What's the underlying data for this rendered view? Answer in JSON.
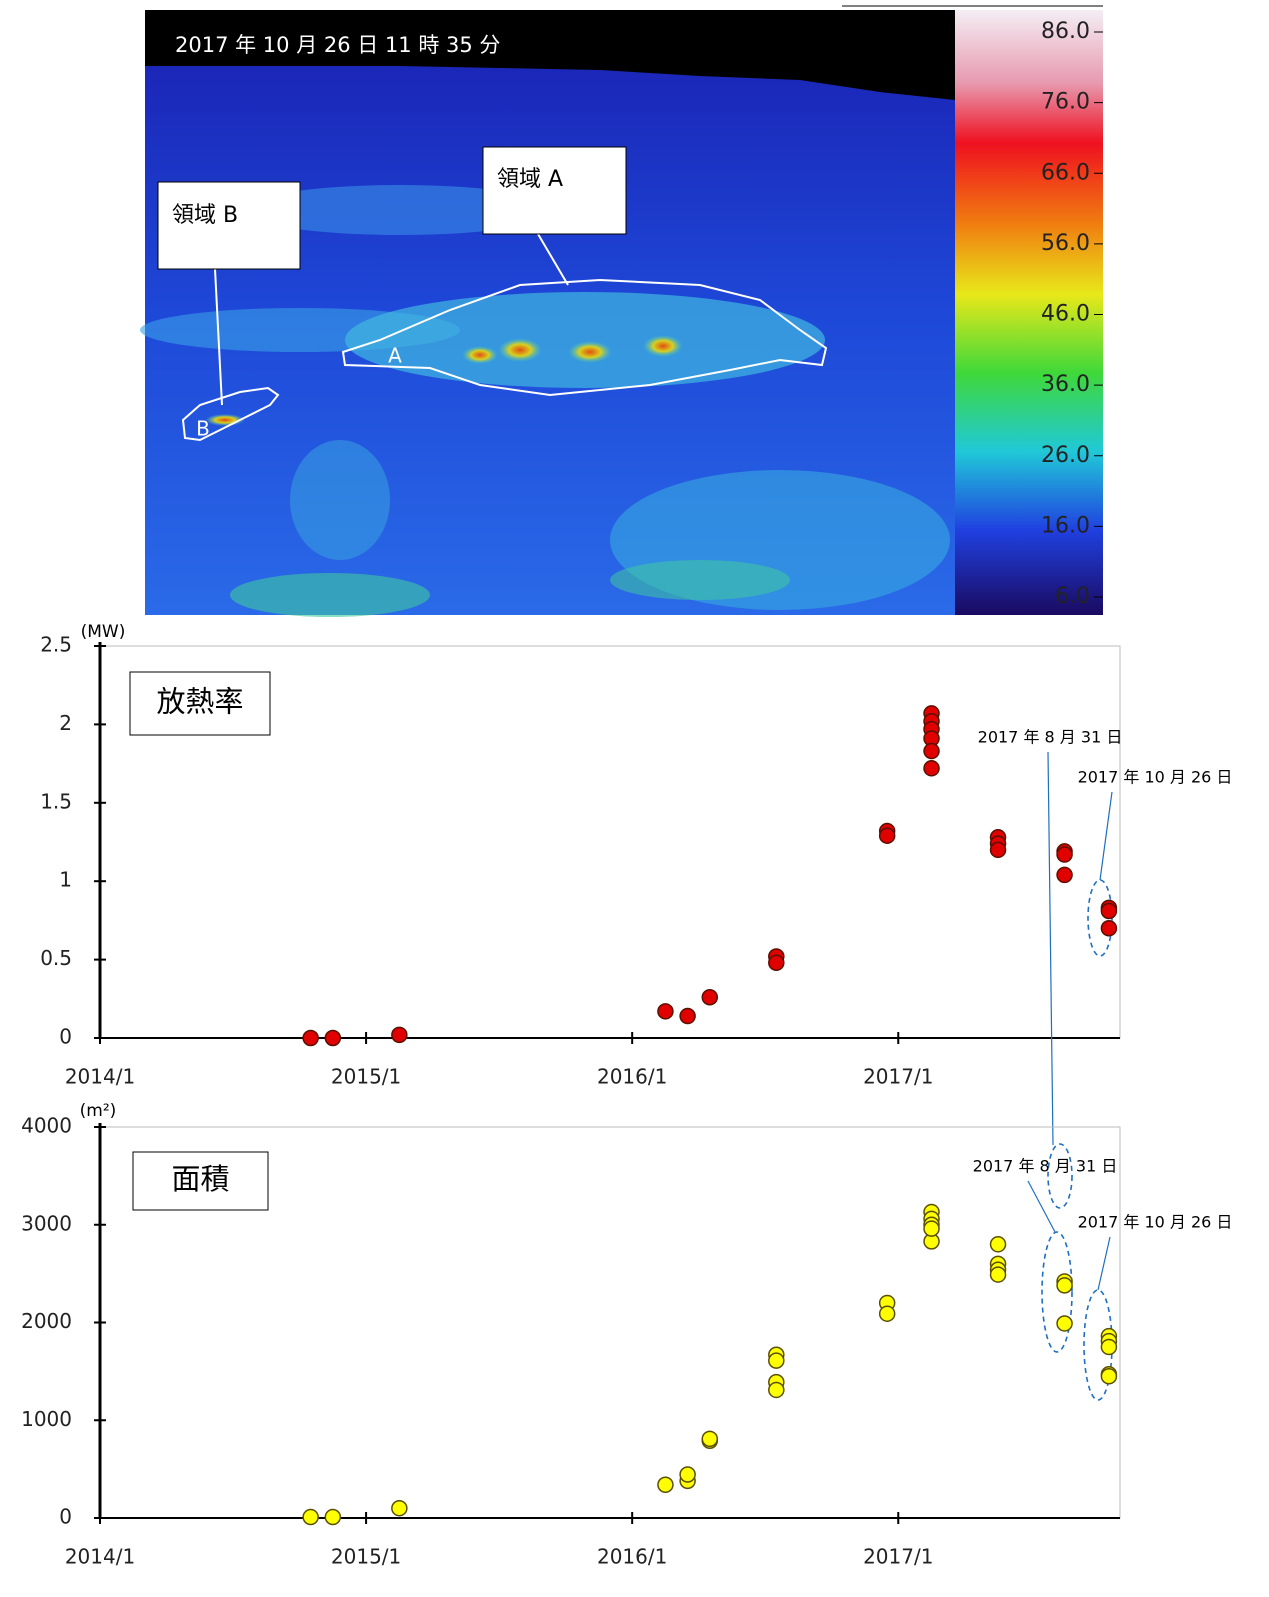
{
  "thermal_image": {
    "timestamp": "2017 年 10 月 26 日 11 時 35 分",
    "colorbar_ticks": [
      {
        "value": 86,
        "label": "86.0"
      },
      {
        "value": 76,
        "label": "76.0"
      },
      {
        "value": 66,
        "label": "66.0"
      },
      {
        "value": 56,
        "label": "56.0"
      },
      {
        "value": 46,
        "label": "46.0"
      },
      {
        "value": 36,
        "label": "36.0"
      },
      {
        "value": 26,
        "label": "26.0"
      },
      {
        "value": 16,
        "label": "16.0"
      },
      {
        "value": 6,
        "label": "6.0"
      }
    ],
    "colorbar_range": [
      6,
      86
    ],
    "regions": [
      {
        "callout": "領域 A",
        "label": "A"
      },
      {
        "callout": "領域 B",
        "label": "B"
      }
    ]
  },
  "chart_data": [
    {
      "type": "scatter",
      "title": "放熱率",
      "y_unit": "(MW)",
      "x": [
        "2014/10",
        "2014/11",
        "2015/2",
        "2016/2",
        "2016/3",
        "2016/4",
        "2016/7",
        "2016/7",
        "2016/12",
        "2016/12",
        "2017/2",
        "2017/2",
        "2017/2",
        "2017/2",
        "2017/2",
        "2017/2",
        "2017/5",
        "2017/5",
        "2017/5",
        "2017/8",
        "2017/8",
        "2017/8",
        "2017/10",
        "2017/10",
        "2017/10"
      ],
      "values": [
        0,
        0,
        0.02,
        0.17,
        0.14,
        0.26,
        0.52,
        0.48,
        1.32,
        1.29,
        2.07,
        2.02,
        1.97,
        1.91,
        1.83,
        1.72,
        1.28,
        1.24,
        1.2,
        1.19,
        1.17,
        1.04,
        0.83,
        0.81,
        0.7
      ],
      "color": "#e00000",
      "edge_color": "#5a1000",
      "xlim": [
        "2014/1",
        "2017/11"
      ],
      "xticks": [
        "2014/1",
        "2015/1",
        "2016/1",
        "2017/1"
      ],
      "ylim": [
        0,
        2.5
      ],
      "yticks": [
        0,
        0.5,
        1,
        1.5,
        2,
        2.5
      ],
      "annotations": [
        "2017 年 8 月 31 日",
        "2017 年 10 月 26 日"
      ]
    },
    {
      "type": "scatter",
      "title": "面積",
      "y_unit": "(m²)",
      "x": [
        "2014/10",
        "2014/11",
        "2015/2",
        "2016/2",
        "2016/3",
        "2016/3",
        "2016/4",
        "2016/4",
        "2016/7",
        "2016/7",
        "2016/7",
        "2016/7",
        "2016/12",
        "2016/12",
        "2017/2",
        "2017/2",
        "2017/2",
        "2017/2",
        "2017/2",
        "2017/5",
        "2017/5",
        "2017/5",
        "2017/5",
        "2017/8",
        "2017/8",
        "2017/8",
        "2017/10",
        "2017/10",
        "2017/10",
        "2017/10",
        "2017/10"
      ],
      "values": [
        10,
        10,
        100,
        340,
        380,
        445,
        790,
        810,
        1670,
        1610,
        1390,
        1310,
        2200,
        2090,
        3130,
        3060,
        3000,
        2830,
        2960,
        2800,
        2600,
        2540,
        2490,
        2420,
        2380,
        1990,
        1860,
        1810,
        1750,
        1470,
        1450
      ],
      "color": "#ffff00",
      "edge_color": "#5a5000",
      "xlim": [
        "2014/1",
        "2017/11"
      ],
      "xticks": [
        "2014/1",
        "2015/1",
        "2016/1",
        "2017/1"
      ],
      "ylim": [
        0,
        4000
      ],
      "yticks": [
        0,
        1000,
        2000,
        3000,
        4000
      ],
      "annotations": [
        "2017 年 8 月 31 日",
        "2017 年 10 月 26 日"
      ]
    }
  ]
}
